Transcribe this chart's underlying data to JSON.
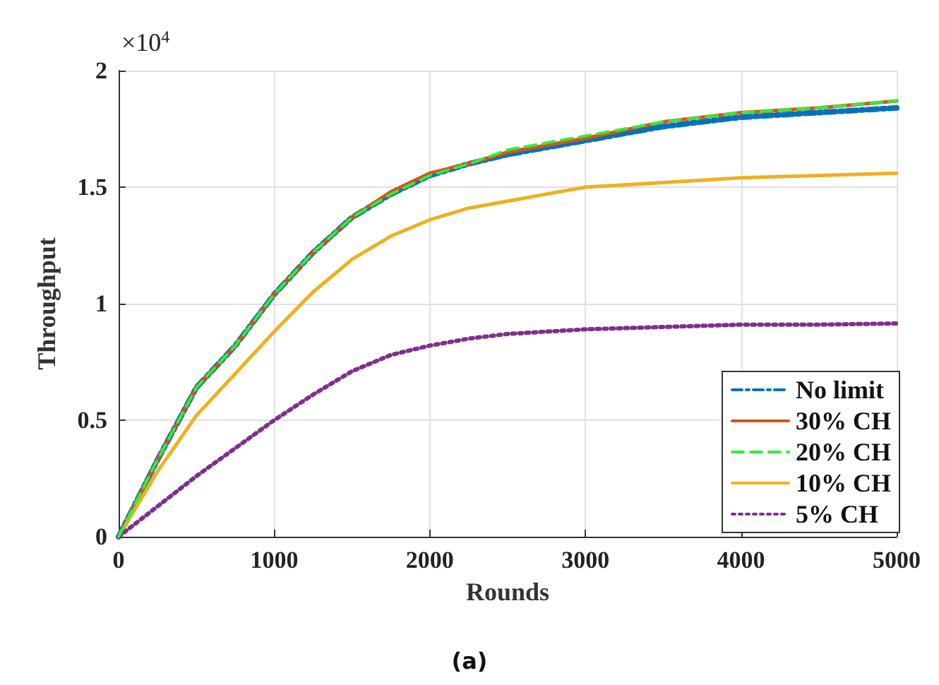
{
  "chart_data": {
    "type": "line",
    "xlabel": "Rounds",
    "ylabel": "Throughput",
    "annotations": [
      "×10$^{4}$",
      "(a)"
    ],
    "x": [
      0,
      250,
      500,
      750,
      1000,
      1250,
      1500,
      1750,
      2000,
      2250,
      2500,
      3000,
      3500,
      4000,
      4500,
      5000
    ],
    "series": [
      {
        "name": "No limit",
        "color": "#0072bd",
        "line_style": "dashdot",
        "values": [
          0,
          0.33,
          0.64,
          0.82,
          1.04,
          1.22,
          1.37,
          1.47,
          1.55,
          1.6,
          1.64,
          1.7,
          1.76,
          1.8,
          1.82,
          1.84
        ]
      },
      {
        "name": "30% CH",
        "color": "#d95319",
        "line_style": "solid",
        "values": [
          0,
          0.33,
          0.64,
          0.82,
          1.04,
          1.22,
          1.37,
          1.48,
          1.56,
          1.6,
          1.65,
          1.71,
          1.78,
          1.82,
          1.84,
          1.87
        ]
      },
      {
        "name": "20% CH",
        "color": "#33ee33",
        "line_style": "dashed",
        "values": [
          0,
          0.33,
          0.64,
          0.82,
          1.04,
          1.22,
          1.37,
          1.47,
          1.55,
          1.6,
          1.66,
          1.72,
          1.78,
          1.82,
          1.84,
          1.87
        ]
      },
      {
        "name": "10% CH",
        "color": "#edb120",
        "line_style": "solid",
        "values": [
          0,
          0.28,
          0.52,
          0.7,
          0.88,
          1.05,
          1.19,
          1.29,
          1.36,
          1.41,
          1.44,
          1.5,
          1.52,
          1.54,
          1.55,
          1.56
        ]
      },
      {
        "name": "5% CH",
        "color": "#7e2f8e",
        "line_style": "dotted",
        "values": [
          0,
          0.13,
          0.26,
          0.38,
          0.5,
          0.61,
          0.71,
          0.78,
          0.82,
          0.85,
          0.87,
          0.89,
          0.9,
          0.91,
          0.91,
          0.915
        ]
      }
    ],
    "xlim": [
      0,
      5000
    ],
    "xticks": [
      0,
      1000,
      2000,
      3000,
      4000,
      5000
    ],
    "ylim": [
      0,
      2
    ],
    "yticks": [
      0,
      0.5,
      1,
      1.5,
      2
    ],
    "grid": true,
    "legend": "bottom right",
    "marker": "none"
  }
}
